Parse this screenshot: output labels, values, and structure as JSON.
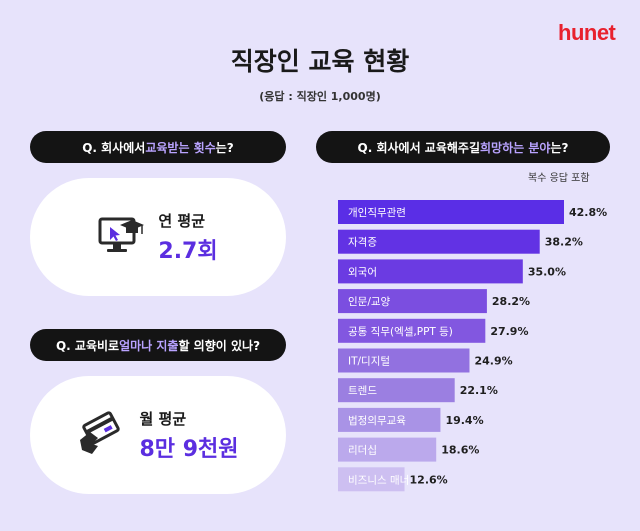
{
  "brand": "hunet",
  "title": "직장인 교육 현황",
  "subtitle": "(응답 : 직장인 1,000명)",
  "q1": {
    "pre": "Q. 회사에서 ",
    "hl": "교육받는 횟수",
    "post": "는?"
  },
  "q2": {
    "pre": "Q. 회사에서 교육해주길 ",
    "hl": "희망하는 분야",
    "post": "는?"
  },
  "q3": {
    "pre": "Q. 교육비로 ",
    "hl": "얼마나 지출",
    "post": "할 의향이 있나?"
  },
  "card1": {
    "label": "연 평균",
    "value": "2.7회"
  },
  "card2": {
    "label": "월 평균",
    "value": "8만 9천원"
  },
  "note": "복수 응답 포함",
  "colors": {
    "background": "#e7e3fb",
    "accent": "#5b2ee0",
    "highlight": "#b9a3ff",
    "brand": "#e8212e"
  },
  "chart_data": {
    "type": "bar",
    "orientation": "horizontal",
    "unit": "%",
    "categories": [
      "개인직무관련",
      "자격증",
      "외국어",
      "인문/교양",
      "공통 직무(엑셀,PPT 등)",
      "IT/디지털",
      "트렌드",
      "법정의무교육",
      "리더십",
      "비즈니스 매너"
    ],
    "values": [
      42.8,
      38.2,
      35.0,
      28.2,
      27.9,
      24.9,
      22.1,
      19.4,
      18.6,
      12.6
    ],
    "labels": [
      "42.8%",
      "38.2%",
      "35.0%",
      "28.2%",
      "27.9%",
      "24.9%",
      "22.1%",
      "19.4%",
      "18.6%",
      "12.6%"
    ],
    "colors": [
      "#5a2ee6",
      "#6232e4",
      "#6b3be2",
      "#7b4ee0",
      "#8257e0",
      "#9271e0",
      "#9b7fe1",
      "#a993e6",
      "#bba9ec",
      "#cdbff1"
    ]
  }
}
